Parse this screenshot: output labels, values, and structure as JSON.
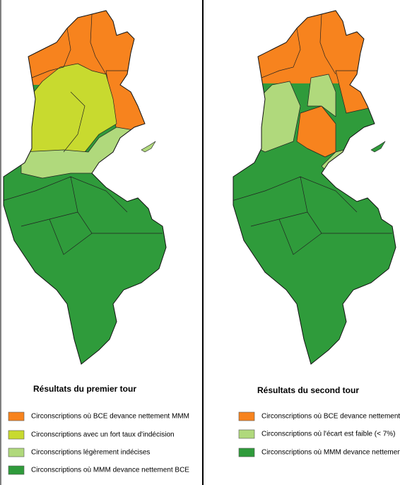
{
  "panels": [
    {
      "title": "Résultats du premier tour",
      "legend": [
        {
          "label": "Circonscriptions où BCE devance nettement MMM",
          "color": "#f7831e"
        },
        {
          "label": "Circonscriptions avec un fort taux d'indécision",
          "color": "#c8da2f"
        },
        {
          "label": "Circonscriptions légèrement indécises",
          "color": "#b0d97c"
        },
        {
          "label": "Circonscriptions où MMM devance nettement BCE",
          "color": "#2f9b3b"
        }
      ]
    },
    {
      "title": "Résultats du second tour",
      "legend": [
        {
          "label": "Circonscriptions où BCE devance nettement MMM",
          "color": "#f7831e"
        },
        {
          "label": "Circonscriptions où l'écart est faible (< 7%)",
          "color": "#b0d97c"
        },
        {
          "label": "Circonscriptions où MMM devance nettement BCE",
          "color": "#2f9b3b"
        }
      ]
    }
  ]
}
